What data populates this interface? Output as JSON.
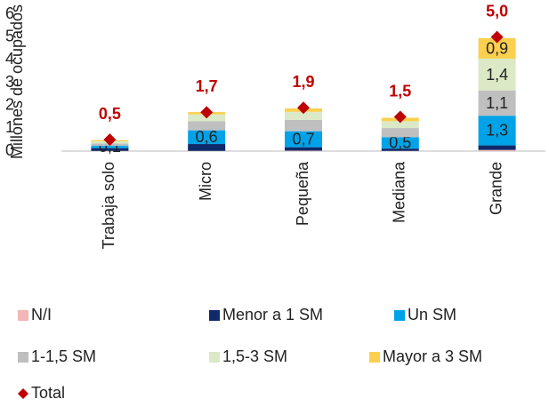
{
  "chart_data": {
    "type": "stacked_bar",
    "y_label": "Millones de ocupados",
    "categories": [
      "Trabaja solo",
      "Micro",
      "Pequeña",
      "Mediana",
      "Grande"
    ],
    "series": [
      {
        "name": "N/I",
        "color": "#f4b6b6",
        "values": [
          0.01,
          0.01,
          0.02,
          0.01,
          0.05
        ]
      },
      {
        "name": "Menor a 1 SM",
        "color": "#0e2a6b",
        "values": [
          0.12,
          0.3,
          0.15,
          0.1,
          0.2
        ]
      },
      {
        "name": "Un SM",
        "color": "#00a3e8",
        "values": [
          0.1,
          0.6,
          0.7,
          0.5,
          1.3
        ],
        "value_labels": [
          "0,1",
          "0,6",
          "0,7",
          "0,5",
          "1,3"
        ]
      },
      {
        "name": "1-1,5 SM",
        "color": "#bfbfbf",
        "values": [
          0.1,
          0.4,
          0.5,
          0.4,
          1.1
        ],
        "value_labels": [
          null,
          null,
          null,
          null,
          "1,1"
        ]
      },
      {
        "name": "1,5-3 SM",
        "color": "#dbe9c6",
        "values": [
          0.1,
          0.3,
          0.35,
          0.3,
          1.4
        ],
        "value_labels": [
          null,
          null,
          null,
          null,
          "1,4"
        ]
      },
      {
        "name": "Mayor a 3 SM",
        "color": "#fcd04f",
        "values": [
          0.05,
          0.1,
          0.15,
          0.15,
          0.9
        ],
        "value_labels": [
          null,
          null,
          null,
          null,
          "0,9"
        ]
      }
    ],
    "totals": {
      "name": "Total",
      "color": "#c00000",
      "values": [
        0.5,
        1.7,
        1.9,
        1.5,
        5.0
      ],
      "value_labels": [
        "0,5",
        "1,7",
        "1,9",
        "1,5",
        "5,0"
      ]
    },
    "ylim": [
      0,
      6
    ],
    "yticks": [
      0,
      1,
      2,
      3,
      4,
      5,
      6
    ],
    "grid": false
  }
}
